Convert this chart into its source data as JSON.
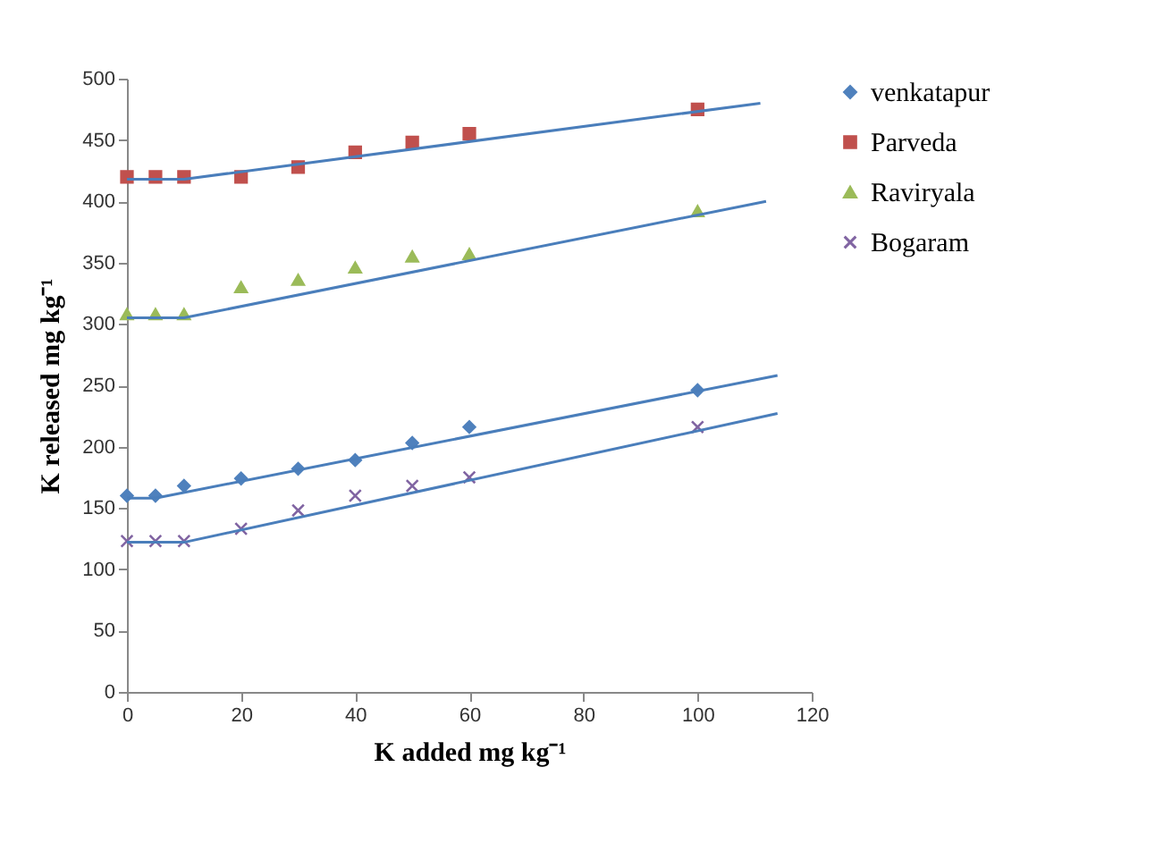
{
  "chart_data": {
    "type": "scatter",
    "xlabel": "K added mg kg⁻¹",
    "ylabel": "K released mg kg⁻¹",
    "xlim": [
      0,
      120
    ],
    "xticks": [
      0,
      20,
      40,
      60,
      80,
      100,
      120
    ],
    "ylim": [
      0,
      500
    ],
    "yticks": [
      0,
      50,
      100,
      150,
      200,
      250,
      300,
      350,
      400,
      450,
      500
    ],
    "grid": false,
    "legend": "right",
    "x": [
      0,
      5,
      10,
      20,
      30,
      40,
      50,
      60,
      100
    ],
    "series": [
      {
        "name": "venkatapur",
        "color": "#4f81bd",
        "marker": "diamond",
        "values": [
          160,
          160,
          168,
          174,
          182,
          189,
          203,
          216,
          246
        ]
      },
      {
        "name": "Parveda",
        "color": "#c0504d",
        "marker": "square",
        "values": [
          420,
          420,
          420,
          420,
          428,
          440,
          448,
          455,
          475
        ]
      },
      {
        "name": "Raviryala",
        "color": "#9bbb59",
        "marker": "triangle",
        "values": [
          308,
          308,
          308,
          330,
          336,
          346,
          355,
          357,
          392
        ]
      },
      {
        "name": "Bogaram",
        "color": "#8064a2",
        "marker": "cross",
        "values": [
          123,
          123,
          123,
          133,
          148,
          160,
          168,
          175,
          216
        ]
      },
      {
        "type": "line",
        "color": "#4a7ebb",
        "marker": "none",
        "x": [
          0,
          5,
          114
        ],
        "values": [
          158,
          158,
          258
        ]
      },
      {
        "type": "line",
        "color": "#4a7ebb",
        "marker": "none",
        "x": [
          0,
          10,
          111
        ],
        "values": [
          418,
          418,
          480
        ]
      },
      {
        "type": "line",
        "color": "#4a7ebb",
        "marker": "none",
        "x": [
          0,
          10,
          112
        ],
        "values": [
          305,
          305,
          400
        ]
      },
      {
        "type": "line",
        "color": "#4a7ebb",
        "marker": "none",
        "x": [
          0,
          10,
          114
        ],
        "values": [
          122,
          122,
          227
        ]
      }
    ]
  }
}
